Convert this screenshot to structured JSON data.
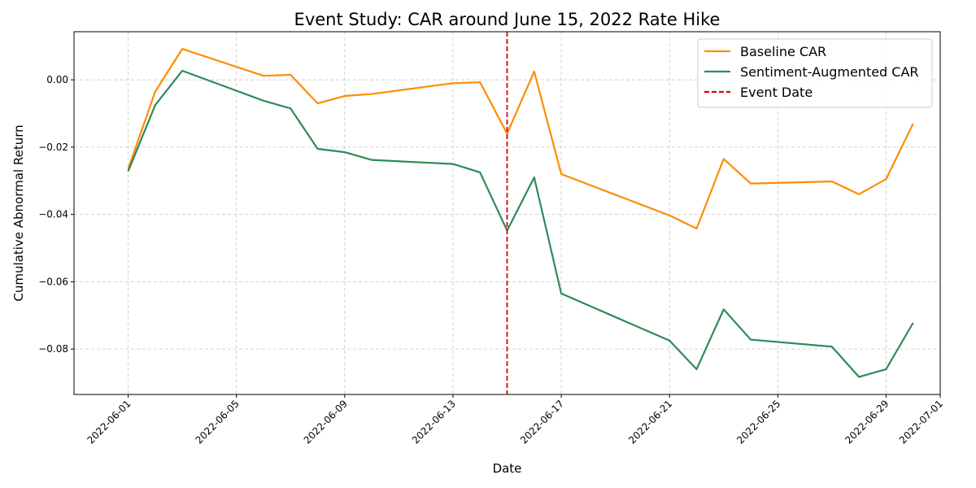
{
  "chart_data": {
    "type": "line",
    "title": "Event Study: CAR around June 15, 2022 Rate Hike",
    "xlabel": "Date",
    "ylabel": "Cumulative Abnormal Return",
    "x": [
      "2022-06-01",
      "2022-06-02",
      "2022-06-03",
      "2022-06-06",
      "2022-06-07",
      "2022-06-08",
      "2022-06-09",
      "2022-06-10",
      "2022-06-13",
      "2022-06-14",
      "2022-06-15",
      "2022-06-16",
      "2022-06-17",
      "2022-06-21",
      "2022-06-22",
      "2022-06-23",
      "2022-06-24",
      "2022-06-27",
      "2022-06-28",
      "2022-06-29",
      "2022-06-30"
    ],
    "series": [
      {
        "name": "Baseline CAR",
        "color": "#ff8c00",
        "values": [
          -0.0265,
          -0.0035,
          0.0092,
          0.0012,
          0.0015,
          -0.007,
          -0.0048,
          -0.0042,
          -0.001,
          -0.0007,
          -0.016,
          0.0025,
          -0.028,
          -0.0403,
          -0.0442,
          -0.0235,
          -0.0308,
          -0.0302,
          -0.034,
          -0.0295,
          -0.013
        ]
      },
      {
        "name": "Sentiment-Augmented CAR",
        "color": "#2e8b57",
        "values": [
          -0.0272,
          -0.0075,
          0.0027,
          -0.0062,
          -0.0085,
          -0.0205,
          -0.0215,
          -0.0238,
          -0.025,
          -0.0275,
          -0.0448,
          -0.029,
          -0.0635,
          -0.0775,
          -0.086,
          -0.0682,
          -0.0772,
          -0.0793,
          -0.0883,
          -0.086,
          -0.0722
        ]
      }
    ],
    "event": {
      "name": "Event Date",
      "date": "2022-06-15",
      "color": "#e00000"
    },
    "xlim": [
      "2022-05-30",
      "2022-07-01"
    ],
    "ylim": [
      -0.0935,
      0.0143
    ],
    "xticks": [
      "2022-06-01",
      "2022-06-05",
      "2022-06-09",
      "2022-06-13",
      "2022-06-17",
      "2022-06-21",
      "2022-06-25",
      "2022-06-29",
      "2022-07-01"
    ],
    "yticks": [
      0.0,
      -0.02,
      -0.04,
      -0.06,
      -0.08
    ],
    "ytick_labels": [
      "0.00",
      "−0.02",
      "−0.04",
      "−0.06",
      "−0.08"
    ],
    "grid": true,
    "legend_position": "top-right"
  }
}
